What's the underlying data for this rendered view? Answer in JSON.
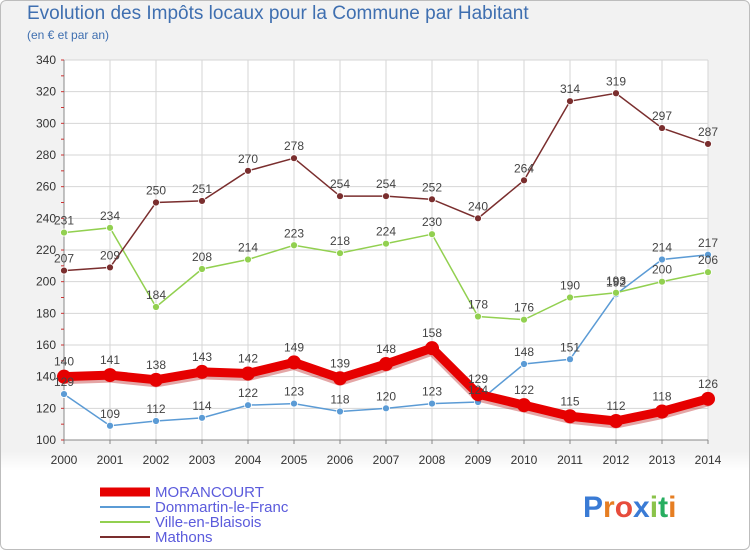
{
  "title": "Evolution des Impôts locaux pour la Commune par Habitant",
  "subtitle": "(en € et par an)",
  "logo": "Proxiti",
  "chart_data": {
    "type": "line",
    "title": "Evolution des Impôts locaux pour la Commune par Habitant",
    "subtitle": "(en € et par an)",
    "xlabel": "",
    "ylabel": "",
    "ylim": [
      100,
      340
    ],
    "yticks": [
      100,
      120,
      140,
      160,
      180,
      200,
      220,
      240,
      260,
      280,
      300,
      320,
      340
    ],
    "grid": true,
    "legend": "bottom-left",
    "x": [
      2000,
      2001,
      2002,
      2003,
      2004,
      2005,
      2006,
      2007,
      2008,
      2009,
      2010,
      2011,
      2012,
      2013,
      2014
    ],
    "series": [
      {
        "name": "MORANCOURT",
        "color": "#e60000",
        "bold": true,
        "values": [
          140,
          141,
          138,
          143,
          142,
          149,
          139,
          148,
          158,
          129,
          122,
          115,
          112,
          118,
          126
        ]
      },
      {
        "name": "Dommartin-le-Franc",
        "color": "#5b9bd5",
        "bold": false,
        "values": [
          129,
          109,
          112,
          114,
          122,
          123,
          118,
          120,
          123,
          124,
          148,
          151,
          192,
          214,
          217
        ]
      },
      {
        "name": "Ville-en-Blaisois",
        "color": "#92d050",
        "bold": false,
        "values": [
          231,
          234,
          184,
          208,
          214,
          223,
          218,
          224,
          230,
          178,
          176,
          190,
          193,
          200,
          206
        ]
      },
      {
        "name": "Mathons",
        "color": "#7a2e2e",
        "bold": false,
        "values": [
          207,
          209,
          250,
          251,
          270,
          278,
          254,
          254,
          252,
          240,
          264,
          314,
          319,
          297,
          287
        ]
      }
    ]
  }
}
